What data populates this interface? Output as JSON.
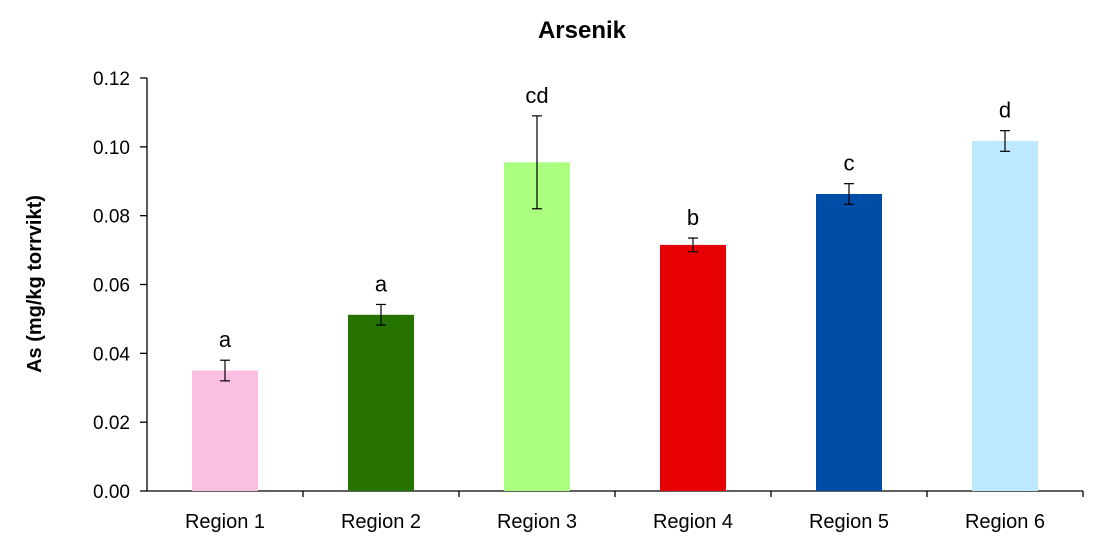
{
  "chart_data": {
    "type": "bar",
    "title": "Arsenik",
    "xlabel": "",
    "ylabel": "As (mg/kg torrvikt)",
    "ylim": [
      0,
      0.12
    ],
    "yticks": [
      "0.00",
      "0.02",
      "0.04",
      "0.06",
      "0.08",
      "0.10",
      "0.12"
    ],
    "grid": false,
    "legend": "none",
    "categories": [
      "Region 1",
      "Region 2",
      "Region 3",
      "Region 4",
      "Region 5",
      "Region 6"
    ],
    "values": [
      0.035,
      0.0512,
      0.0955,
      0.0715,
      0.0863,
      0.1017
    ],
    "errors": [
      0.003,
      0.003,
      0.0135,
      0.002,
      0.003,
      0.003
    ],
    "significance_letters": [
      "a",
      "a",
      "cd",
      "b",
      "c",
      "d"
    ],
    "colors": [
      "#FCBFE4",
      "#267300",
      "#AAFF80",
      "#E60000",
      "#004DA8",
      "#BEE8FF"
    ]
  }
}
